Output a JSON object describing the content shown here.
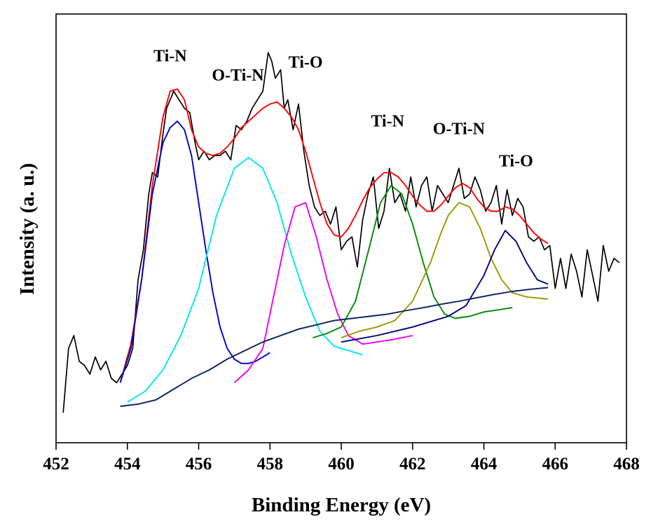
{
  "chart_data": {
    "type": "line",
    "title": "",
    "xlabel": "Binding Energy (eV)",
    "ylabel": "Intensity (a. u.)",
    "xlim": [
      452,
      468
    ],
    "ylim": [
      0,
      100
    ],
    "xticks": [
      "452",
      "454",
      "456",
      "458",
      "460",
      "462",
      "464",
      "466",
      "468"
    ],
    "grid": false,
    "legend": "none",
    "annotations": [
      {
        "text": "Ti-N",
        "x": 455.2,
        "y": 89
      },
      {
        "text": "O-Ti-N",
        "x": 457.1,
        "y": 84.5
      },
      {
        "text": "Ti-O",
        "x": 459.0,
        "y": 87.5
      },
      {
        "text": "Ti-N",
        "x": 461.3,
        "y": 73.8
      },
      {
        "text": "O-Ti-N",
        "x": 463.3,
        "y": 72
      },
      {
        "text": "Ti-O",
        "x": 464.9,
        "y": 64.5
      }
    ],
    "series": [
      {
        "color": "#000000",
        "role": "raw",
        "x": [
          452.2,
          452.35,
          452.5,
          452.65,
          452.8,
          452.95,
          453.1,
          453.25,
          453.4,
          453.55,
          453.7,
          453.85,
          454.0,
          454.15,
          454.3,
          454.45,
          454.6,
          454.7,
          454.85,
          455.0,
          455.1,
          455.2,
          455.3,
          455.45,
          455.6,
          455.75,
          455.9,
          456.0,
          456.15,
          456.3,
          456.45,
          456.6,
          456.75,
          456.9,
          457.05,
          457.2,
          457.35,
          457.5,
          457.65,
          457.8,
          457.95,
          458.05,
          458.15,
          458.3,
          458.4,
          458.5,
          458.65,
          458.8,
          458.95,
          459.1,
          459.25,
          459.4,
          459.55,
          459.7,
          459.85,
          460.0,
          460.15,
          460.3,
          460.45,
          460.6,
          460.75,
          460.9,
          461.05,
          461.2,
          461.35,
          461.5,
          461.65,
          461.8,
          461.95,
          462.1,
          462.25,
          462.4,
          462.55,
          462.7,
          462.85,
          463.0,
          463.15,
          463.3,
          463.45,
          463.6,
          463.75,
          463.9,
          464.05,
          464.2,
          464.35,
          464.5,
          464.65,
          464.8,
          464.95,
          465.1,
          465.25,
          465.4,
          465.55,
          465.7,
          465.85,
          466.0,
          466.15,
          466.3,
          466.45,
          466.6,
          466.75,
          466.9,
          467.05,
          467.2,
          467.35,
          467.5,
          467.65,
          467.8
        ],
        "y": [
          7,
          22,
          25,
          19,
          18,
          16,
          20,
          17,
          19,
          15,
          14,
          16,
          18,
          22,
          38,
          45,
          58,
          63,
          62,
          72,
          78,
          80,
          82,
          80,
          78,
          77,
          70,
          66,
          68,
          66,
          67,
          67,
          68,
          66,
          74,
          73,
          75,
          78,
          80,
          82,
          91,
          89,
          85,
          87,
          78,
          80,
          73,
          79,
          68,
          60,
          55,
          53,
          54,
          51,
          55,
          45,
          47,
          48,
          41,
          52,
          58,
          62,
          50,
          54,
          64,
          56,
          58,
          54,
          62,
          55,
          60,
          62,
          54,
          60,
          58,
          56,
          60,
          64,
          57,
          58,
          62,
          59,
          54,
          56,
          60,
          51,
          59,
          53,
          57,
          55,
          48,
          47,
          48,
          45,
          46,
          36,
          43,
          36,
          44,
          40,
          34,
          45,
          39,
          33,
          46,
          40,
          43,
          42
        ]
      },
      {
        "color": "#ff0000",
        "role": "envelope",
        "x": [
          453.8,
          454.1,
          454.4,
          454.7,
          455.0,
          455.2,
          455.4,
          455.6,
          455.8,
          456.0,
          456.2,
          456.4,
          456.6,
          456.8,
          457.0,
          457.2,
          457.4,
          457.6,
          457.8,
          458.0,
          458.2,
          458.4,
          458.6,
          458.8,
          459.0,
          459.2,
          459.4,
          459.6,
          459.8,
          460.0,
          460.2,
          460.4,
          460.6,
          460.8,
          461.0,
          461.2,
          461.4,
          461.6,
          461.8,
          462.0,
          462.2,
          462.4,
          462.6,
          462.8,
          463.0,
          463.2,
          463.4,
          463.6,
          463.8,
          464.0,
          464.2,
          464.4,
          464.6,
          464.8,
          465.0,
          465.2,
          465.4,
          465.6,
          465.8
        ],
        "y": [
          14,
          23,
          38,
          60,
          76,
          82,
          82.5,
          80,
          73,
          69,
          67.5,
          67,
          67.5,
          69,
          71,
          73.5,
          75,
          76.5,
          78,
          79,
          79.5,
          78,
          76,
          73,
          68,
          62,
          56,
          51,
          48.5,
          48,
          50,
          53,
          56.5,
          59.5,
          61.5,
          63,
          63,
          62,
          60,
          57.5,
          55.5,
          54,
          54,
          55.5,
          57.5,
          59.5,
          60.5,
          59.5,
          57,
          55,
          54,
          54,
          55,
          54.5,
          53,
          51,
          49,
          47.5,
          46.5
        ]
      },
      {
        "color": "#0000cc",
        "role": "fit-peak",
        "label": "Ti-N",
        "x": [
          453.8,
          454.1,
          454.4,
          454.7,
          455.0,
          455.2,
          455.4,
          455.6,
          455.8,
          456.0,
          456.2,
          456.4,
          456.6,
          456.8,
          457.0,
          457.2,
          457.4,
          457.6,
          457.8,
          458.0
        ],
        "y": [
          14,
          22,
          38,
          58,
          70,
          73.5,
          75,
          73,
          67,
          56,
          45,
          35,
          27,
          22,
          19.5,
          18.5,
          18.5,
          19,
          20,
          21
        ]
      },
      {
        "color": "#00e5ee",
        "role": "fit-peak",
        "label": "O-Ti-N",
        "x": [
          454.0,
          454.5,
          455.0,
          455.5,
          456.0,
          456.5,
          457.0,
          457.4,
          457.8,
          458.2,
          458.6,
          459.0,
          459.4,
          459.8,
          460.2,
          460.6
        ],
        "y": [
          9.5,
          12,
          17,
          25,
          36,
          53,
          64,
          66.5,
          64,
          56,
          44,
          34,
          26,
          22.5,
          21.5,
          20.5
        ]
      },
      {
        "color": "#ee00ee",
        "role": "fit-peak",
        "label": "Ti-O",
        "x": [
          457.0,
          457.4,
          457.8,
          458.1,
          458.4,
          458.7,
          459.0,
          459.3,
          459.6,
          459.9,
          460.2,
          460.6,
          461.0,
          461.4,
          462.0
        ],
        "y": [
          14,
          17,
          22,
          34,
          46,
          55,
          56,
          48,
          38,
          30,
          25,
          23,
          23.5,
          24,
          25
        ]
      },
      {
        "color": "#008800",
        "role": "fit-peak",
        "label": "Ti-N",
        "x": [
          459.2,
          459.6,
          460.0,
          460.4,
          460.8,
          461.1,
          461.4,
          461.7,
          462.0,
          462.3,
          462.6,
          462.9,
          463.2,
          463.6,
          464.0,
          464.4,
          464.8
        ],
        "y": [
          24.5,
          25.5,
          27,
          33,
          46,
          56,
          60,
          58,
          51,
          42,
          34,
          30,
          29,
          29.5,
          30.5,
          31,
          31.5
        ]
      },
      {
        "color": "#999900",
        "role": "fit-peak",
        "label": "O-Ti-N",
        "x": [
          460.0,
          460.5,
          461.0,
          461.5,
          462.0,
          462.5,
          462.8,
          463.0,
          463.3,
          463.6,
          463.9,
          464.2,
          464.5,
          464.8,
          465.2,
          465.8
        ],
        "y": [
          24.5,
          26,
          27,
          28.5,
          33,
          42,
          49,
          53,
          56,
          55,
          50,
          43,
          38,
          35,
          34,
          33.5
        ]
      },
      {
        "color": "#000080",
        "role": "fit-peak",
        "label": "Ti-O",
        "x": [
          460.0,
          461.0,
          462.0,
          463.0,
          463.5,
          464.0,
          464.3,
          464.6,
          464.9,
          465.2,
          465.5,
          465.8
        ],
        "y": [
          23.5,
          25,
          27,
          29.5,
          32,
          39,
          45,
          49.5,
          47,
          42,
          38,
          37
        ]
      },
      {
        "color": "#0a2060",
        "role": "background",
        "x": [
          453.8,
          454.3,
          454.8,
          455.3,
          455.8,
          456.3,
          456.8,
          457.3,
          457.8,
          458.3,
          458.8,
          459.3,
          459.8,
          460.3,
          460.8,
          461.3,
          461.8,
          462.3,
          462.8,
          463.3,
          463.8,
          464.3,
          464.8,
          465.3,
          465.8
        ],
        "y": [
          8.5,
          9,
          10,
          12.5,
          15,
          17,
          19.5,
          21.5,
          23.5,
          25,
          26.5,
          27.5,
          28.5,
          29,
          29.5,
          30,
          30.8,
          31.5,
          32.3,
          33,
          33.8,
          34.6,
          35.3,
          35.8,
          36.2
        ]
      }
    ]
  }
}
